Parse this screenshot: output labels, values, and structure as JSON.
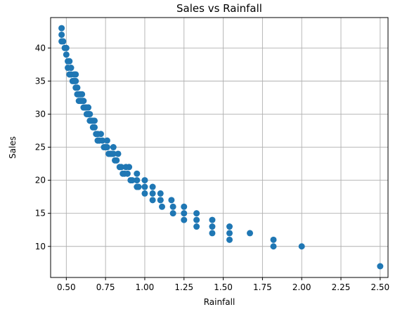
{
  "chart_data": {
    "type": "scatter",
    "title": "Sales vs Rainfall",
    "xlabel": "Rainfall",
    "ylabel": "Sales",
    "xlim": [
      0.4,
      2.55
    ],
    "ylim": [
      5.3,
      44.6
    ],
    "x_ticks": [
      "0.50",
      "0.75",
      "1.00",
      "1.25",
      "1.50",
      "1.75",
      "2.00",
      "2.25",
      "2.50"
    ],
    "x_tick_values": [
      0.5,
      0.75,
      1.0,
      1.25,
      1.5,
      1.75,
      2.0,
      2.25,
      2.5
    ],
    "y_ticks": [
      "10",
      "15",
      "20",
      "25",
      "30",
      "35",
      "40"
    ],
    "y_tick_values": [
      10,
      15,
      20,
      25,
      30,
      35,
      40
    ],
    "grid": true,
    "marker_color": "#1f77b4",
    "points": [
      [
        0.47,
        43
      ],
      [
        0.47,
        42
      ],
      [
        0.47,
        41
      ],
      [
        0.49,
        40
      ],
      [
        0.5,
        40
      ],
      [
        0.5,
        39
      ],
      [
        0.51,
        38
      ],
      [
        0.52,
        38
      ],
      [
        0.51,
        37
      ],
      [
        0.53,
        37
      ],
      [
        0.53,
        36
      ],
      [
        0.55,
        36
      ],
      [
        0.54,
        35
      ],
      [
        0.55,
        35
      ],
      [
        0.56,
        35
      ],
      [
        0.56,
        34
      ],
      [
        0.57,
        34
      ],
      [
        0.57,
        33
      ],
      [
        0.58,
        33
      ],
      [
        0.59,
        33
      ],
      [
        0.58,
        32
      ],
      [
        0.59,
        32
      ],
      [
        0.61,
        32
      ],
      [
        0.6,
        33
      ],
      [
        0.61,
        31
      ],
      [
        0.62,
        31
      ],
      [
        0.63,
        31
      ],
      [
        0.64,
        30
      ],
      [
        0.63,
        30
      ],
      [
        0.65,
        30
      ],
      [
        0.65,
        29
      ],
      [
        0.66,
        29
      ],
      [
        0.67,
        29
      ],
      [
        0.67,
        28
      ],
      [
        0.68,
        28
      ],
      [
        0.69,
        27
      ],
      [
        0.7,
        27
      ],
      [
        0.7,
        26
      ],
      [
        0.71,
        26
      ],
      [
        0.73,
        26
      ],
      [
        0.74,
        25
      ],
      [
        0.75,
        25
      ],
      [
        0.76,
        25
      ],
      [
        0.77,
        24
      ],
      [
        0.78,
        24
      ],
      [
        0.79,
        24
      ],
      [
        0.8,
        25
      ],
      [
        0.81,
        23
      ],
      [
        0.82,
        23
      ],
      [
        0.84,
        22
      ],
      [
        0.85,
        22
      ],
      [
        0.86,
        21
      ],
      [
        0.87,
        21
      ],
      [
        0.89,
        21
      ],
      [
        0.91,
        20
      ],
      [
        0.92,
        20
      ],
      [
        0.95,
        20
      ],
      [
        0.95,
        19
      ],
      [
        0.96,
        19
      ],
      [
        1.0,
        19
      ],
      [
        1.0,
        18
      ],
      [
        1.05,
        18
      ],
      [
        1.05,
        17
      ],
      [
        1.1,
        18
      ],
      [
        1.1,
        17
      ],
      [
        1.11,
        16
      ],
      [
        1.17,
        17
      ],
      [
        1.18,
        16
      ],
      [
        1.18,
        15
      ],
      [
        1.25,
        16
      ],
      [
        1.25,
        15
      ],
      [
        1.25,
        14
      ],
      [
        1.33,
        15
      ],
      [
        1.33,
        14
      ],
      [
        1.33,
        13
      ],
      [
        1.43,
        14
      ],
      [
        1.43,
        13
      ],
      [
        1.43,
        12
      ],
      [
        1.54,
        13
      ],
      [
        1.54,
        12
      ],
      [
        1.54,
        11
      ],
      [
        1.67,
        12
      ],
      [
        1.82,
        11
      ],
      [
        1.82,
        10
      ],
      [
        2.0,
        10
      ],
      [
        2.5,
        7
      ],
      [
        0.48,
        41
      ],
      [
        0.52,
        36
      ],
      [
        0.56,
        36
      ],
      [
        0.6,
        32
      ],
      [
        0.64,
        31
      ],
      [
        0.68,
        29
      ],
      [
        0.72,
        27
      ],
      [
        0.76,
        26
      ],
      [
        0.8,
        24
      ],
      [
        0.83,
        24
      ],
      [
        0.88,
        22
      ],
      [
        0.9,
        22
      ],
      [
        0.95,
        21
      ],
      [
        1.0,
        20
      ],
      [
        1.05,
        19
      ],
      [
        1.1,
        17
      ]
    ]
  }
}
